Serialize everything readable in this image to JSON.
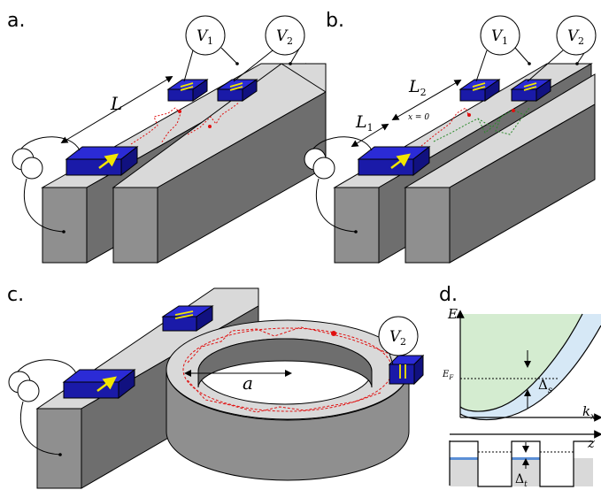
{
  "panels": {
    "a": {
      "label": "a.",
      "length_label": "L",
      "voltmeter_1": {
        "letter": "V",
        "sub": "1"
      },
      "voltmeter_2": {
        "letter": "V",
        "sub": "2"
      }
    },
    "b": {
      "label": "b.",
      "length_1": {
        "letter": "L",
        "sub": "1"
      },
      "length_2": {
        "letter": "L",
        "sub": "2"
      },
      "origin_label": "x = 0",
      "voltmeter_1": {
        "letter": "V",
        "sub": "1"
      },
      "voltmeter_2": {
        "letter": "V",
        "sub": "2"
      }
    },
    "c": {
      "label": "c.",
      "radius_label": "a",
      "voltmeter_2": {
        "letter": "V",
        "sub": "2"
      }
    },
    "d": {
      "label": "d.",
      "energy_axis": "E",
      "momentum_axis": {
        "letter": "k",
        "sub": "x"
      },
      "fermi_level": {
        "letter": "E",
        "sub": "F"
      },
      "gap_s": {
        "letter": "Δ",
        "sub": "s"
      },
      "position_axis": "z",
      "gap_t": {
        "letter": "Δ",
        "sub": "t"
      }
    }
  },
  "colors": {
    "block_front": "#8f8f8f",
    "block_side": "#6e6e6e",
    "block_top": "#d9d9d9",
    "contact": "#1a1aa8",
    "contact_top": "#2b2bd6",
    "arrow": "#f2e600",
    "path_red": "#e01010",
    "path_green": "#2a8a2a",
    "band_green": "#d4ecd0",
    "band_blue": "#d6e8f6",
    "gap_blue": "#5b8fd6"
  }
}
